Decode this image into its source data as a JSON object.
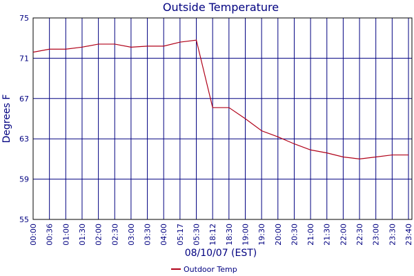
{
  "chart_data": {
    "type": "line",
    "title": "Outside Temperature",
    "xlabel": "08/10/07 (EST)",
    "ylabel": "Degrees F",
    "categories": [
      "00:00",
      "00:36",
      "01:00",
      "01:30",
      "02:00",
      "02:30",
      "03:00",
      "03:30",
      "04:00",
      "05:17",
      "05:30",
      "18:12",
      "18:30",
      "19:00",
      "19:30",
      "20:00",
      "20:30",
      "21:00",
      "21:30",
      "22:00",
      "22:30",
      "23:00",
      "23:30",
      "23:40"
    ],
    "series": [
      {
        "name": "Outdoor Temp",
        "color": "#b00018",
        "values": [
          71.6,
          71.9,
          71.9,
          72.1,
          72.4,
          72.4,
          72.1,
          72.2,
          72.2,
          72.6,
          72.8,
          66.1,
          66.1,
          65.0,
          63.8,
          63.2,
          62.5,
          61.9,
          61.6,
          61.2,
          61.0,
          61.2,
          61.4,
          61.4
        ]
      }
    ],
    "ylim": [
      55,
      75
    ],
    "yticks": [
      55,
      59,
      63,
      67,
      71,
      75
    ],
    "grid": true,
    "legend": "bottom"
  }
}
